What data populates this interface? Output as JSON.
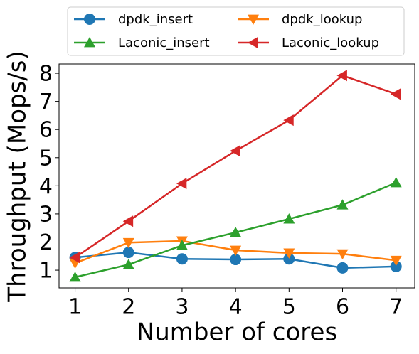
{
  "chart_data": {
    "type": "line",
    "xlabel": "Number of cores",
    "ylabel": "Throughput (Mops/s)",
    "x": [
      1,
      2,
      3,
      4,
      5,
      6,
      7
    ],
    "xlim": [
      0.7,
      7.35
    ],
    "xticks": [
      1,
      2,
      3,
      4,
      5,
      6,
      7
    ],
    "ylim": [
      0.37,
      8.33
    ],
    "yticks": [
      1,
      2,
      3,
      4,
      5,
      6,
      7,
      8
    ],
    "legend": "top",
    "legend_columns": 2,
    "series": [
      {
        "name": "dpdk_insert",
        "color": "#1f77b4",
        "marker": "circle",
        "values": [
          1.45,
          1.63,
          1.4,
          1.38,
          1.4,
          1.08,
          1.13
        ]
      },
      {
        "name": "dpdk_lookup",
        "color": "#ff7f0e",
        "marker": "triangle-down",
        "values": [
          1.25,
          1.98,
          2.04,
          1.71,
          1.61,
          1.58,
          1.35
        ]
      },
      {
        "name": "Laconic_insert",
        "color": "#2ca02c",
        "marker": "triangle-up",
        "values": [
          0.75,
          1.2,
          1.88,
          2.34,
          2.82,
          3.32,
          4.11
        ]
      },
      {
        "name": "Laconic_lookup",
        "color": "#d62728",
        "marker": "triangle-left",
        "values": [
          1.45,
          2.74,
          4.08,
          5.24,
          6.33,
          7.92,
          7.26
        ]
      }
    ]
  }
}
